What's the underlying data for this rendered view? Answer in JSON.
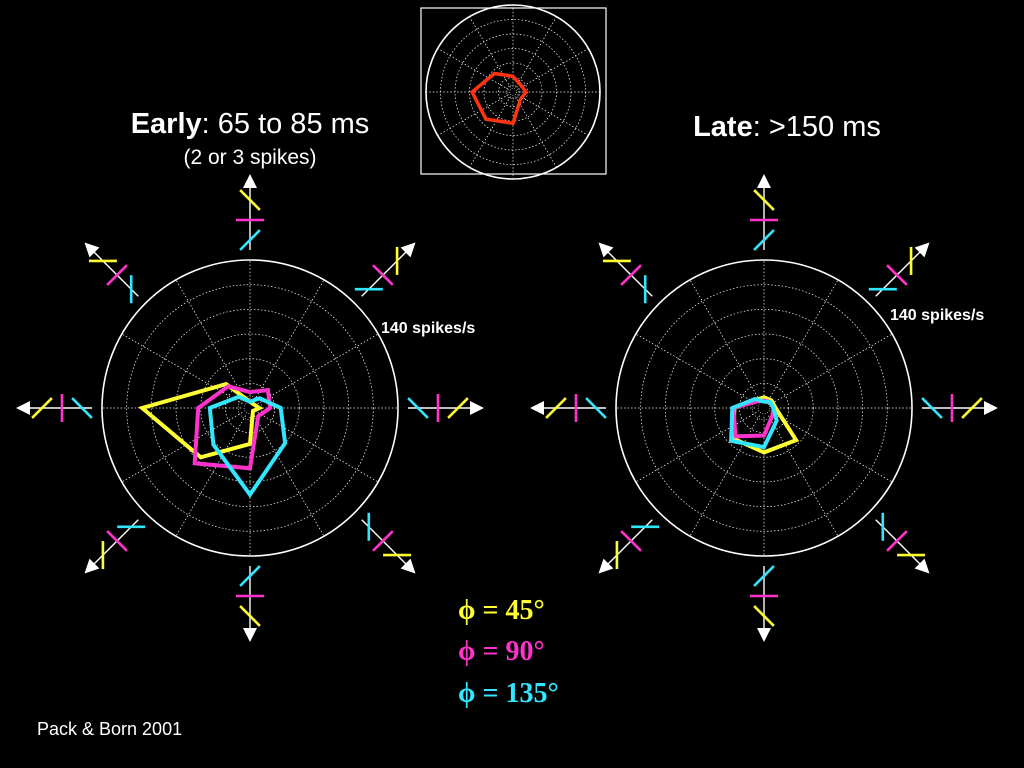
{
  "early_title": {
    "bold": "Early",
    "rest": ": 65 to 85 ms",
    "sub": "(2 or 3 spikes)"
  },
  "late_title": {
    "bold": "Late",
    "rest": ": >150 ms"
  },
  "credit": "Pack & Born 2001",
  "colors": {
    "phi45": "#ffff33",
    "phi90": "#ff33cc",
    "phi135": "#33e6ff",
    "axes": "#ffffff",
    "inset_trace": "#ff3311"
  },
  "legend": [
    {
      "symbol": "ϕ",
      "text": " = 45°",
      "color": "#ffff33"
    },
    {
      "symbol": "ϕ",
      "text": " = 90°",
      "color": "#ff33cc"
    },
    {
      "symbol": "ϕ",
      "text": " = 135°",
      "color": "#33e6ff"
    }
  ],
  "chart_data": [
    {
      "type": "polar-line",
      "title": "Early: 65 to 85 ms",
      "subtitle": "(2 or 3 spikes)",
      "scale_label": "140 spikes/s",
      "r_max": 140,
      "directions_deg": [
        0,
        45,
        90,
        135,
        180,
        225,
        270,
        315
      ],
      "series": [
        {
          "name": "ϕ = 45°",
          "color": "#ffff33",
          "values": [
            9,
            5,
            6,
            32,
            102,
            66,
            34,
            4
          ]
        },
        {
          "name": "ϕ = 90°",
          "color": "#ff33cc",
          "values": [
            19,
            24,
            15,
            29,
            49,
            74,
            57,
            11
          ]
        },
        {
          "name": "ϕ = 135°",
          "color": "#33e6ff",
          "values": [
            29,
            13,
            6,
            15,
            38,
            49,
            82,
            47
          ]
        }
      ]
    },
    {
      "type": "polar-line",
      "title": "Late: >150 ms",
      "scale_label": "140 spikes/s",
      "r_max": 140,
      "directions_deg": [
        0,
        45,
        90,
        135,
        180,
        225,
        270,
        315
      ],
      "series": [
        {
          "name": "ϕ = 45°",
          "color": "#ffff33",
          "values": [
            11,
            10,
            10,
            11,
            28,
            41,
            42,
            43
          ]
        },
        {
          "name": "ϕ = 90°",
          "color": "#ff33cc",
          "values": [
            9,
            8,
            7,
            9,
            29,
            38,
            26,
            11
          ]
        },
        {
          "name": "ϕ = 135°",
          "color": "#33e6ff",
          "values": [
            9,
            8,
            6,
            12,
            30,
            44,
            37,
            17
          ]
        }
      ]
    },
    {
      "type": "polar-line",
      "r_max": 100,
      "directions_deg": [
        0,
        45,
        90,
        135,
        180,
        225,
        270,
        315
      ],
      "series": [
        {
          "color": "#ff3311",
          "values": [
            15,
            12,
            18,
            30,
            47,
            44,
            36,
            12
          ]
        }
      ]
    }
  ]
}
